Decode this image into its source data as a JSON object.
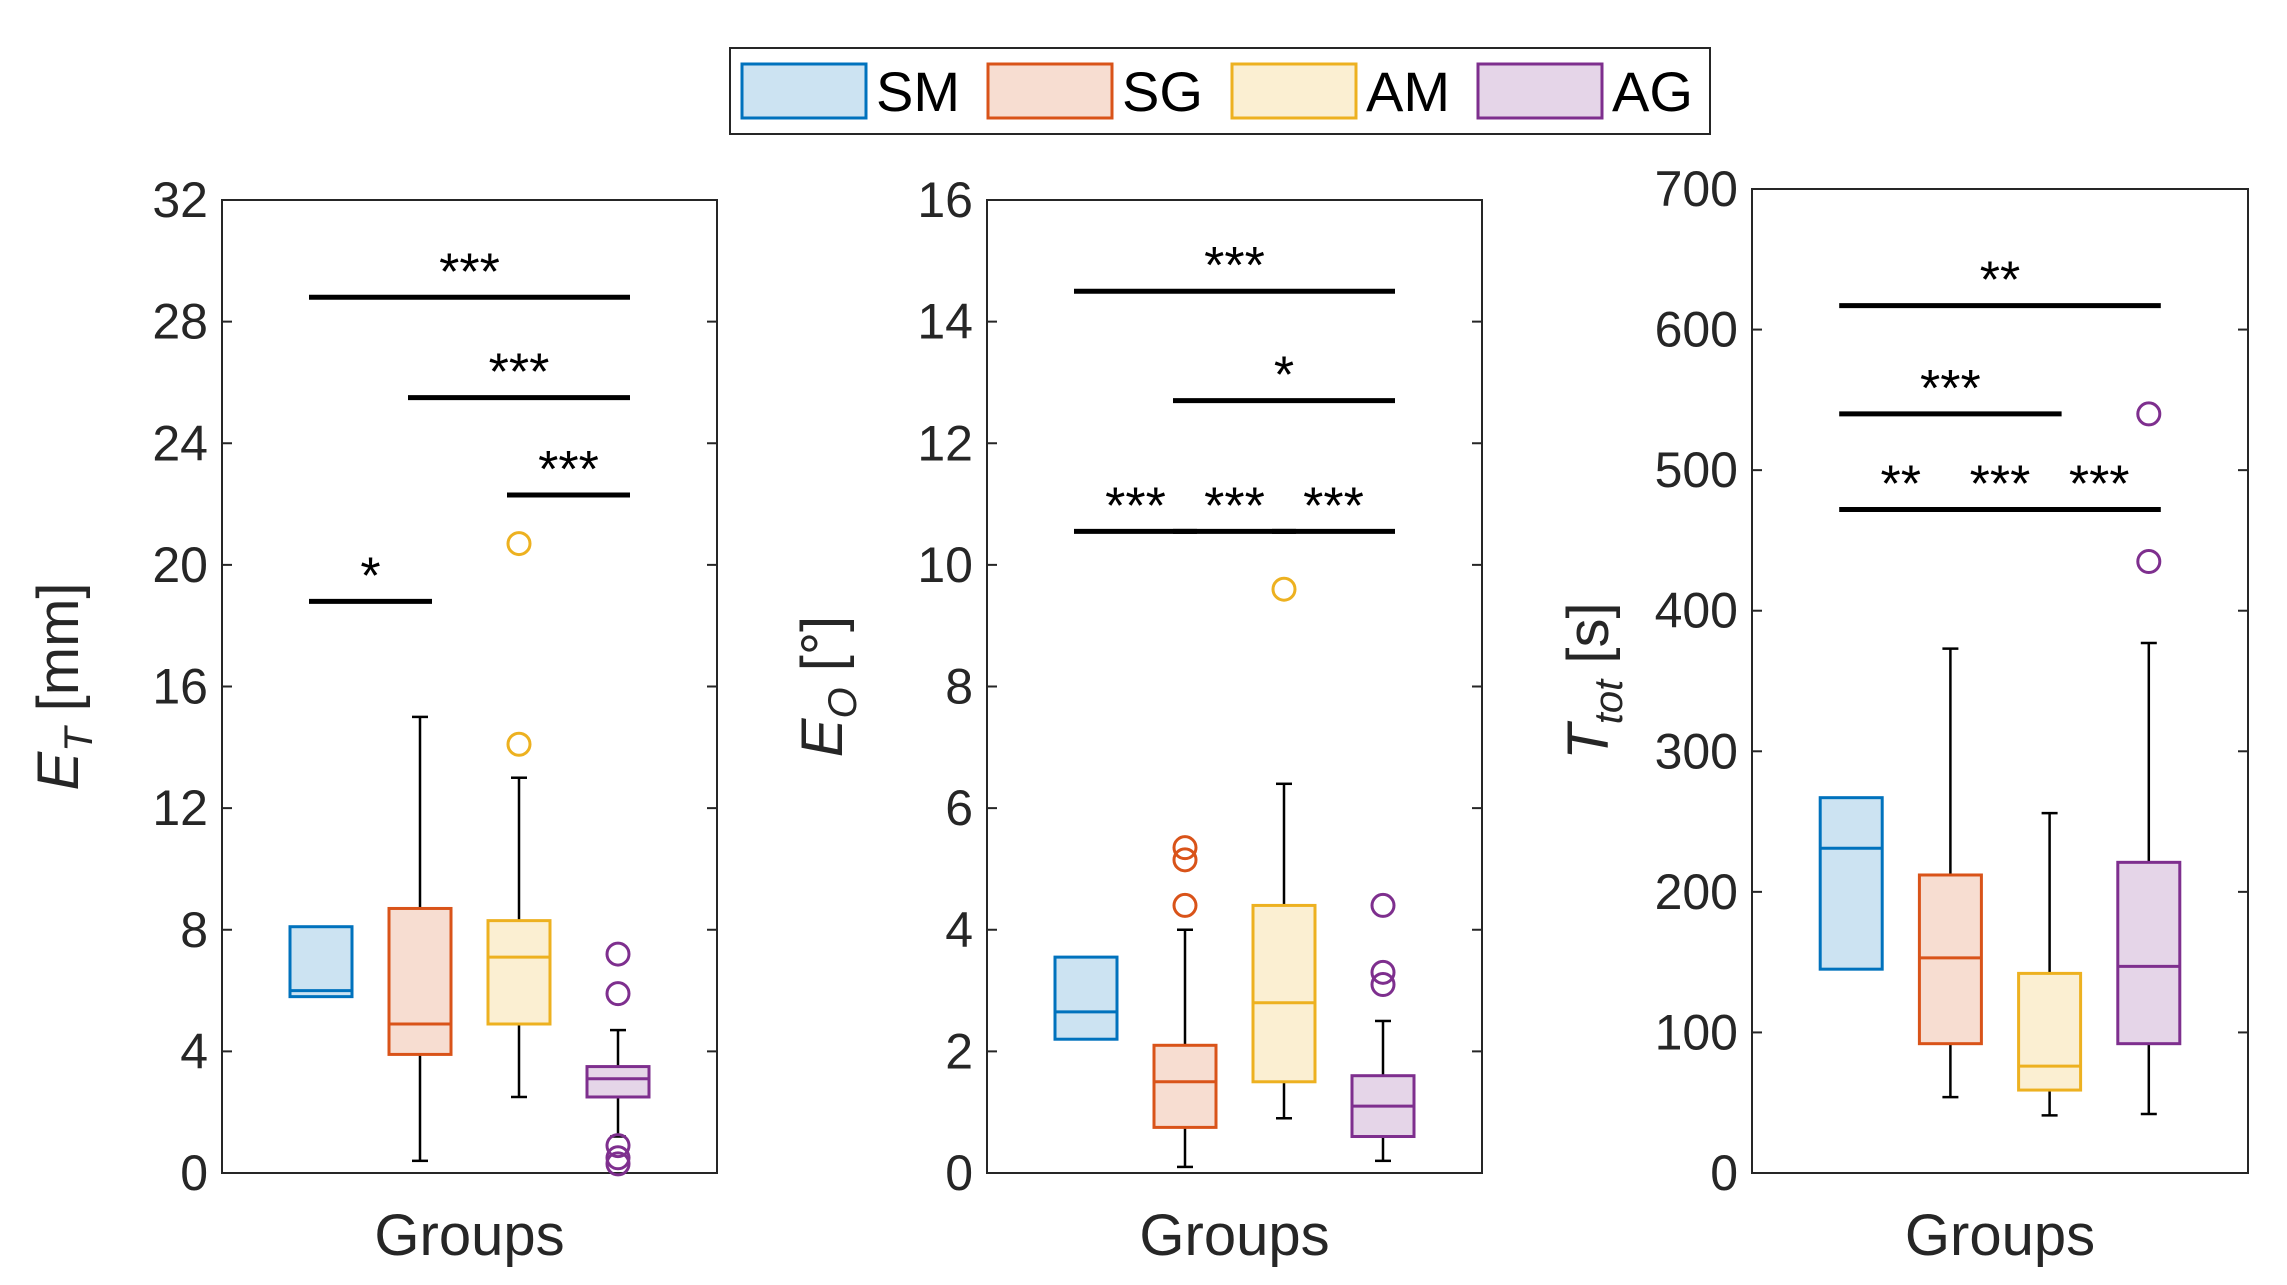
{
  "legend": {
    "items": [
      {
        "label": "SM",
        "color": "#0072BD",
        "fill": "#CCE3F2"
      },
      {
        "label": "SG",
        "color": "#D95319",
        "fill": "#F7DDD1"
      },
      {
        "label": "AM",
        "color": "#EDB120",
        "fill": "#FBEFD2"
      },
      {
        "label": "AG",
        "color": "#7E2F8E",
        "fill": "#E5D5E8"
      }
    ]
  },
  "chart_data": [
    {
      "type": "box",
      "xlabel": "Groups",
      "ylabel_main": "E",
      "ylabel_sub": "T",
      "ylabel_unit": " [mm]",
      "ylim": [
        0,
        32
      ],
      "yticks": [
        0,
        4,
        8,
        12,
        16,
        20,
        24,
        28,
        32
      ],
      "boxes": [
        {
          "group": "SM",
          "q1": 5.8,
          "median": 6.0,
          "q3": 8.1,
          "whisker_low": 5.8,
          "whisker_high": 8.1,
          "outliers": []
        },
        {
          "group": "SG",
          "q1": 3.9,
          "median": 4.9,
          "q3": 8.7,
          "whisker_low": 0.4,
          "whisker_high": 15.0,
          "outliers": []
        },
        {
          "group": "AM",
          "q1": 4.9,
          "median": 7.1,
          "q3": 8.3,
          "whisker_low": 2.5,
          "whisker_high": 13.0,
          "outliers": [
            14.1,
            20.7
          ]
        },
        {
          "group": "AG",
          "q1": 2.5,
          "median": 3.1,
          "q3": 3.5,
          "whisker_low": 1.2,
          "whisker_high": 4.7,
          "outliers": [
            0.3,
            0.5,
            0.9,
            5.9,
            7.2
          ]
        }
      ],
      "significance": [
        {
          "from": 0,
          "to": 1,
          "y": 18.8,
          "label": "*"
        },
        {
          "from": 2,
          "to": 3,
          "y": 22.3,
          "label": "***"
        },
        {
          "from": 1,
          "to": 3,
          "y": 25.5,
          "label": "***"
        },
        {
          "from": 0,
          "to": 3,
          "y": 28.8,
          "label": "***"
        }
      ]
    },
    {
      "type": "box",
      "xlabel": "Groups",
      "ylabel_main": "E",
      "ylabel_sub": "O",
      "ylabel_unit": " [°]",
      "ylim": [
        0,
        16
      ],
      "yticks": [
        0,
        2,
        4,
        6,
        8,
        10,
        12,
        14,
        16
      ],
      "boxes": [
        {
          "group": "SM",
          "q1": 2.2,
          "median": 2.65,
          "q3": 3.55,
          "whisker_low": 2.2,
          "whisker_high": 3.55,
          "outliers": []
        },
        {
          "group": "SG",
          "q1": 0.75,
          "median": 1.5,
          "q3": 2.1,
          "whisker_low": 0.1,
          "whisker_high": 4.0,
          "outliers": [
            4.4,
            5.15,
            5.35
          ]
        },
        {
          "group": "AM",
          "q1": 1.5,
          "median": 2.8,
          "q3": 4.4,
          "whisker_low": 0.9,
          "whisker_high": 6.4,
          "outliers": [
            9.6
          ]
        },
        {
          "group": "AG",
          "q1": 0.6,
          "median": 1.1,
          "q3": 1.6,
          "whisker_low": 0.2,
          "whisker_high": 2.5,
          "outliers": [
            3.1,
            3.3,
            4.4
          ]
        }
      ],
      "significance": [
        {
          "from": 0,
          "to": 1,
          "y": 10.55,
          "label": "***"
        },
        {
          "from": 1,
          "to": 2,
          "y": 10.55,
          "label": "***"
        },
        {
          "from": 2,
          "to": 3,
          "y": 10.55,
          "label": "***"
        },
        {
          "from": 1,
          "to": 3,
          "y": 12.7,
          "label": "*"
        },
        {
          "from": 0,
          "to": 3,
          "y": 14.5,
          "label": "***"
        }
      ]
    },
    {
      "type": "box",
      "xlabel": "Groups",
      "ylabel_main": "T",
      "ylabel_sub": "tot",
      "ylabel_unit": " [s]",
      "ylim": [
        0,
        700
      ],
      "yticks": [
        0,
        100,
        200,
        300,
        400,
        500,
        600,
        700
      ],
      "boxes": [
        {
          "group": "SM",
          "q1": 145,
          "median": 231,
          "q3": 267,
          "whisker_low": 145,
          "whisker_high": 267,
          "outliers": []
        },
        {
          "group": "SG",
          "q1": 92,
          "median": 153,
          "q3": 212,
          "whisker_low": 54,
          "whisker_high": 373,
          "outliers": []
        },
        {
          "group": "AM",
          "q1": 59,
          "median": 76,
          "q3": 142,
          "whisker_low": 41,
          "whisker_high": 256,
          "outliers": []
        },
        {
          "group": "AG",
          "q1": 92,
          "median": 147,
          "q3": 221,
          "whisker_low": 42,
          "whisker_high": 377,
          "outliers": [
            435,
            540
          ]
        }
      ],
      "significance": [
        {
          "from": 0,
          "to": 1,
          "y": 472,
          "label": "**"
        },
        {
          "from": 1,
          "to": 2,
          "y": 472,
          "label": "***"
        },
        {
          "from": 2,
          "to": 3,
          "y": 472,
          "label": "***"
        },
        {
          "from": 0,
          "to": 2,
          "y": 540,
          "label": "***"
        },
        {
          "from": 0,
          "to": 3,
          "y": 617,
          "label": "**"
        }
      ]
    }
  ]
}
